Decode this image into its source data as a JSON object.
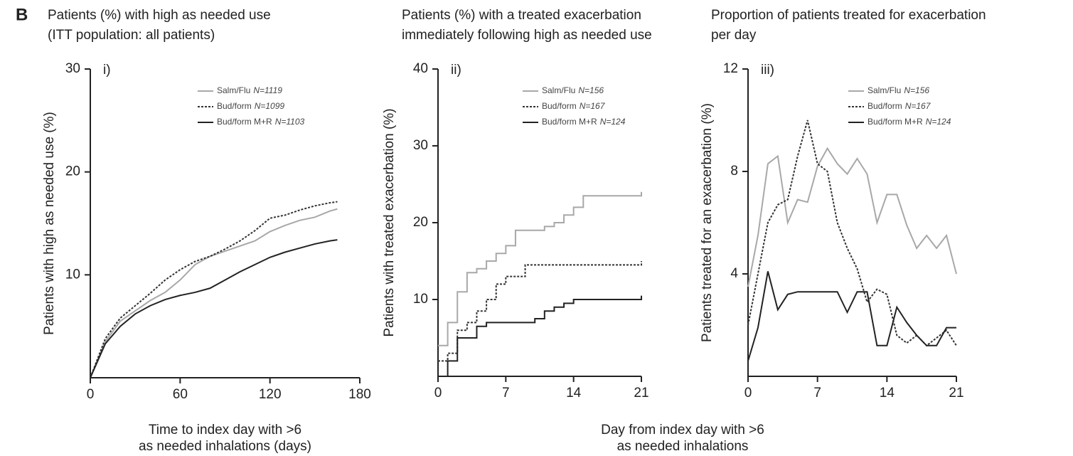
{
  "panel_label": "B",
  "xlabel_shared": [
    "Day from index day with >6",
    "as needed inhalations"
  ],
  "chart_data": [
    {
      "type": "line",
      "panel": "i)",
      "title": [
        "Patients (%) with high as needed use",
        "(ITT population: all patients)"
      ],
      "ylabel": "Patients with high as needed use (%)",
      "xlabel": [
        "Time to index day with >6",
        "as needed inhalations (days)"
      ],
      "x": [
        0,
        10,
        20,
        30,
        40,
        50,
        60,
        70,
        80,
        90,
        100,
        110,
        120,
        130,
        140,
        150,
        160,
        165
      ],
      "xlim": [
        0,
        180
      ],
      "xticks": [
        0,
        60,
        120,
        180
      ],
      "ylim": [
        0,
        30
      ],
      "yticks": [
        10,
        20,
        30
      ],
      "series": [
        {
          "name": "Salm/Flu",
          "n": "N=1119",
          "color": "#a8a8a8",
          "style": "solid",
          "values": [
            0,
            3.5,
            5.5,
            6.5,
            7.5,
            8.3,
            9.5,
            11,
            11.8,
            12.3,
            12.8,
            13.3,
            14.2,
            14.8,
            15.3,
            15.6,
            16.2,
            16.4
          ]
        },
        {
          "name": "Bud/form",
          "n": "N=1099",
          "color": "#333333",
          "style": "dotted",
          "values": [
            0,
            3.8,
            5.8,
            7,
            8.2,
            9.5,
            10.5,
            11.3,
            11.8,
            12.5,
            13.3,
            14.3,
            15.5,
            15.8,
            16.3,
            16.7,
            17,
            17.1
          ]
        },
        {
          "name": "Bud/form M+R",
          "n": "N=1103",
          "color": "#222222",
          "style": "solid",
          "values": [
            0,
            3.3,
            5,
            6.2,
            7,
            7.6,
            8,
            8.3,
            8.7,
            9.5,
            10.3,
            11,
            11.7,
            12.2,
            12.6,
            13,
            13.3,
            13.4
          ]
        }
      ]
    },
    {
      "type": "step",
      "panel": "ii)",
      "title": [
        "Patients (%) with a treated exacerbation",
        "immediately following high as needed use"
      ],
      "ylabel": "Patients with treated exacerbation (%)",
      "x": [
        0,
        1,
        2,
        3,
        4,
        5,
        6,
        7,
        8,
        9,
        10,
        11,
        12,
        13,
        14,
        15,
        16,
        17,
        18,
        19,
        20,
        21
      ],
      "xlim": [
        0,
        21
      ],
      "xticks": [
        0,
        7,
        14,
        21
      ],
      "ylim": [
        0,
        40
      ],
      "yticks": [
        10,
        20,
        30,
        40
      ],
      "series": [
        {
          "name": "Salm/Flu",
          "n": "N=156",
          "color": "#a8a8a8",
          "style": "solid",
          "values": [
            4,
            7,
            11,
            13.5,
            14,
            15,
            16,
            17,
            19,
            19,
            19,
            19.5,
            20,
            21,
            22,
            23.5,
            23.5,
            23.5,
            23.5,
            23.5,
            23.5,
            24
          ]
        },
        {
          "name": "Bud/form",
          "n": "N=167",
          "color": "#333333",
          "style": "dotted",
          "values": [
            2,
            3,
            6,
            7,
            8.5,
            10,
            12,
            13,
            13,
            14.5,
            14.5,
            14.5,
            14.5,
            14.5,
            14.5,
            14.5,
            14.5,
            14.5,
            14.5,
            14.5,
            14.5,
            15
          ]
        },
        {
          "name": "Bud/form M+R",
          "n": "N=124",
          "color": "#222222",
          "style": "solid",
          "values": [
            0,
            2,
            5,
            5,
            6.5,
            7,
            7,
            7,
            7,
            7,
            7.5,
            8.5,
            9,
            9.5,
            10,
            10,
            10,
            10,
            10,
            10,
            10,
            10.5
          ]
        }
      ]
    },
    {
      "type": "line",
      "panel": "iii)",
      "title": [
        "Proportion of patients treated for exacerbation",
        "per day"
      ],
      "ylabel": "Patients treated for an exacerbation (%)",
      "x": [
        0,
        1,
        2,
        3,
        4,
        5,
        6,
        7,
        8,
        9,
        10,
        11,
        12,
        13,
        14,
        15,
        16,
        17,
        18,
        19,
        20,
        21
      ],
      "xlim": [
        0,
        21
      ],
      "xticks": [
        0,
        7,
        14,
        21
      ],
      "ylim": [
        0,
        12
      ],
      "yticks": [
        4,
        8,
        12
      ],
      "series": [
        {
          "name": "Salm/Flu",
          "n": "N=156",
          "color": "#a8a8a8",
          "style": "solid",
          "values": [
            3.5,
            5.5,
            8.3,
            8.6,
            6,
            6.9,
            6.8,
            8.2,
            8.9,
            8.3,
            7.9,
            8.5,
            7.9,
            6,
            7.1,
            7.1,
            5.9,
            5,
            5.5,
            5,
            5.5,
            4
          ]
        },
        {
          "name": "Bud/form",
          "n": "N=167",
          "color": "#333333",
          "style": "dotted",
          "values": [
            2,
            4,
            6,
            6.7,
            6.9,
            8.6,
            10,
            8.3,
            8,
            6,
            5,
            4.2,
            2.9,
            3.4,
            3.2,
            1.6,
            1.3,
            1.6,
            1.2,
            1.5,
            1.8,
            1.2
          ]
        },
        {
          "name": "Bud/form M+R",
          "n": "N=124",
          "color": "#222222",
          "style": "solid",
          "values": [
            0.6,
            1.9,
            4.1,
            2.6,
            3.2,
            3.3,
            3.3,
            3.3,
            3.3,
            3.3,
            2.5,
            3.3,
            3.3,
            1.2,
            1.2,
            2.7,
            2.1,
            1.6,
            1.2,
            1.2,
            1.9,
            1.9
          ]
        }
      ]
    }
  ]
}
